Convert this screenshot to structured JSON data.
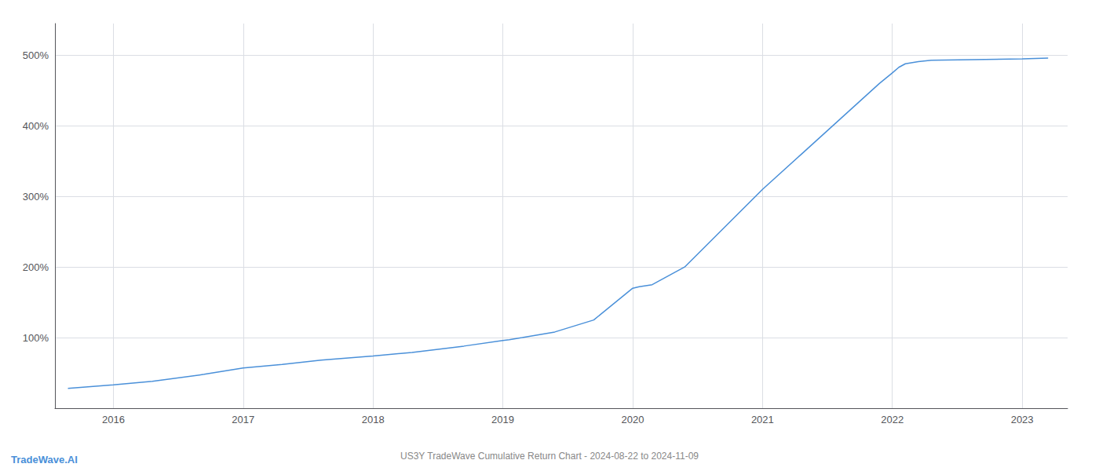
{
  "chart_data": {
    "type": "line",
    "title": "US3Y TradeWave Cumulative Return Chart - 2024-08-22 to 2024-11-09",
    "annotations": [
      "TradeWave.AI"
    ],
    "color": "#4a90d9",
    "x": [
      2015.65,
      2016.0,
      2016.3,
      2016.7,
      2017.0,
      2017.3,
      2017.6,
      2018.0,
      2018.3,
      2018.7,
      2019.0,
      2019.05,
      2019.15,
      2019.4,
      2019.7,
      2020.0,
      2020.05,
      2020.15,
      2020.4,
      2020.7,
      2021.0,
      2021.3,
      2021.6,
      2021.9,
      2022.0,
      2022.05,
      2022.1,
      2022.2,
      2022.3,
      2023.0,
      2023.2
    ],
    "values": [
      28,
      33,
      38,
      48,
      57,
      62,
      68,
      74,
      79,
      88,
      96,
      97,
      100,
      108,
      125,
      170,
      172,
      175,
      200,
      255,
      310,
      360,
      410,
      460,
      475,
      483,
      488,
      491,
      493,
      495,
      496
    ],
    "xlim": [
      2015.55,
      2023.35
    ],
    "xticks": [
      2016,
      2017,
      2018,
      2019,
      2020,
      2021,
      2022,
      2023
    ],
    "ylim": [
      0,
      545
    ],
    "yticks": [
      {
        "value": 100,
        "label": "100%"
      },
      {
        "value": 200,
        "label": "200%"
      },
      {
        "value": 300,
        "label": "300%"
      },
      {
        "value": 400,
        "label": "400%"
      },
      {
        "value": 500,
        "label": "500%"
      }
    ],
    "grid": true
  }
}
